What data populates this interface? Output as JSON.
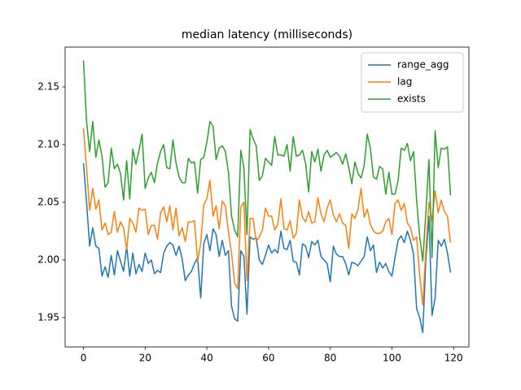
{
  "chart_data": {
    "type": "line",
    "title": "median latency (milliseconds)",
    "x": [
      0,
      1,
      2,
      3,
      4,
      5,
      6,
      7,
      8,
      9,
      10,
      11,
      12,
      13,
      14,
      15,
      16,
      17,
      18,
      19,
      20,
      21,
      22,
      23,
      24,
      25,
      26,
      27,
      28,
      29,
      30,
      31,
      32,
      33,
      34,
      35,
      36,
      37,
      38,
      39,
      40,
      41,
      42,
      43,
      44,
      45,
      46,
      47,
      48,
      49,
      50,
      51,
      52,
      53,
      54,
      55,
      56,
      57,
      58,
      59,
      60,
      61,
      62,
      63,
      64,
      65,
      66,
      67,
      68,
      69,
      70,
      71,
      72,
      73,
      74,
      75,
      76,
      77,
      78,
      79,
      80,
      81,
      82,
      83,
      84,
      85,
      86,
      87,
      88,
      89,
      90,
      91,
      92,
      93,
      94,
      95,
      96,
      97,
      98,
      99,
      100,
      101,
      102,
      103,
      104,
      105,
      106,
      107,
      108,
      109,
      110,
      111,
      112,
      113,
      114,
      115,
      116,
      117,
      118,
      119
    ],
    "series": [
      {
        "name": "range_agg",
        "color": "#1f77b4",
        "values": [
          2.084,
          2.05,
          2.012,
          2.028,
          2.012,
          2.01,
          1.986,
          1.994,
          1.985,
          2.004,
          1.987,
          2.008,
          1.999,
          1.99,
          2.012,
          1.986,
          2.006,
          1.988,
          1.996,
          1.99,
          2.006,
          1.997,
          2.0,
          1.988,
          1.991,
          1.989,
          2.006,
          2.012,
          2.015,
          2.013,
          2.004,
          2.012,
          2.001,
          1.982,
          1.987,
          1.99,
          1.997,
          2.002,
          1.967,
          2.014,
          2.022,
          2.008,
          2.027,
          2.022,
          2.003,
          2.017,
          2.004,
          2.008,
          1.96,
          1.949,
          1.947,
          2.008,
          2.003,
          1.953,
          2.02,
          2.018,
          2.019,
          2.0,
          1.996,
          2.004,
          2.013,
          2.006,
          2.009,
          2.006,
          2.025,
          2.01,
          2.009,
          2.017,
          1.999,
          1.998,
          1.987,
          2.014,
          2.012,
          2.002,
          2.016,
          2.013,
          2.017,
          2.003,
          2.0,
          1.997,
          1.981,
          2.012,
          2.005,
          2.003,
          2.003,
          1.997,
          1.987,
          1.998,
          1.997,
          1.995,
          1.999,
          2.003,
          2.02,
          2.008,
          2.013,
          1.989,
          1.998,
          1.993,
          1.997,
          1.99,
          1.986,
          2.002,
          2.017,
          2.021,
          2.015,
          2.025,
          2.017,
          2.005,
          1.958,
          1.95,
          1.937,
          2.0,
          2.038,
          1.952,
          1.967,
          2.017,
          2.012,
          2.018,
          2.006,
          1.989
        ]
      },
      {
        "name": "lag",
        "color": "#ff7f0e",
        "values": [
          2.114,
          2.08,
          2.043,
          2.062,
          2.044,
          2.052,
          2.026,
          2.032,
          2.022,
          2.024,
          2.042,
          2.024,
          2.033,
          2.028,
          2.009,
          2.036,
          2.032,
          2.024,
          2.045,
          2.043,
          2.044,
          2.022,
          2.03,
          2.03,
          2.018,
          2.041,
          2.046,
          2.033,
          2.047,
          2.026,
          2.045,
          2.021,
          2.028,
          2.016,
          2.033,
          2.033,
          2.034,
          1.999,
          2.014,
          2.048,
          2.053,
          2.069,
          2.038,
          2.047,
          2.027,
          2.051,
          2.047,
          2.024,
          2.006,
          1.98,
          1.975,
          2.046,
          2.05,
          1.982,
          2.036,
          2.036,
          2.016,
          2.02,
          2.026,
          2.045,
          2.038,
          2.038,
          2.026,
          2.031,
          2.053,
          2.027,
          2.026,
          2.034,
          2.019,
          2.023,
          2.052,
          2.037,
          2.033,
          2.042,
          2.032,
          2.033,
          2.054,
          2.04,
          2.033,
          2.045,
          2.052,
          2.039,
          2.033,
          2.04,
          2.032,
          2.03,
          2.01,
          2.04,
          2.036,
          2.044,
          2.062,
          2.037,
          2.044,
          2.031,
          2.025,
          2.023,
          2.023,
          2.025,
          2.033,
          2.036,
          2.022,
          2.049,
          2.052,
          2.043,
          2.049,
          2.032,
          2.028,
          2.017,
          2.02,
          1.987,
          1.961,
          2.009,
          2.05,
          2.034,
          2.06,
          2.041,
          2.052,
          2.042,
          2.038,
          2.015
        ]
      },
      {
        "name": "exists",
        "color": "#2ca02c",
        "values": [
          2.173,
          2.12,
          2.094,
          2.12,
          2.089,
          2.104,
          2.09,
          2.063,
          2.067,
          2.097,
          2.079,
          2.083,
          2.075,
          2.052,
          2.086,
          2.053,
          2.096,
          2.083,
          2.095,
          2.109,
          2.062,
          2.071,
          2.076,
          2.067,
          2.084,
          2.094,
          2.1,
          2.08,
          2.079,
          2.104,
          2.084,
          2.072,
          2.067,
          2.067,
          2.088,
          2.084,
          2.085,
          2.058,
          2.087,
          2.089,
          2.102,
          2.12,
          2.116,
          2.087,
          2.097,
          2.099,
          2.094,
          2.076,
          2.038,
          2.026,
          2.02,
          2.095,
          2.08,
          2.022,
          2.113,
          2.105,
          2.099,
          2.069,
          2.073,
          2.088,
          2.085,
          2.082,
          2.107,
          2.091,
          2.091,
          2.09,
          2.1,
          2.077,
          2.107,
          2.09,
          2.091,
          2.095,
          2.084,
          2.059,
          2.094,
          2.085,
          2.096,
          2.077,
          2.091,
          2.095,
          2.089,
          2.091,
          2.093,
          2.09,
          2.083,
          2.092,
          2.08,
          2.066,
          2.085,
          2.075,
          2.071,
          2.082,
          2.109,
          2.097,
          2.072,
          2.07,
          2.081,
          2.079,
          2.057,
          2.076,
          2.057,
          2.057,
          2.069,
          2.097,
          2.095,
          2.101,
          2.086,
          2.094,
          2.052,
          2.02,
          1.999,
          2.041,
          2.087,
          2.002,
          2.112,
          2.08,
          2.097,
          2.096,
          2.098,
          2.056
        ]
      }
    ],
    "xlim": [
      -5.95,
      124.95
    ],
    "xticks": [
      0,
      20,
      40,
      60,
      80,
      100,
      120
    ],
    "ylim": [
      1.9246,
      2.1845
    ],
    "yticks": [
      1.95,
      {
        "value": 2.0,
        "label": "2.00"
      },
      2.05,
      {
        "value": 2.1,
        "label": "2.10"
      },
      2.15
    ],
    "legend": "upper right",
    "grid": false
  }
}
